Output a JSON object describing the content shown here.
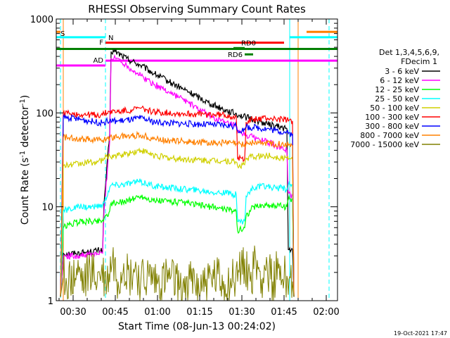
{
  "chart_data": {
    "type": "line",
    "title": "RHESSI Observing Summary Count Rates",
    "xlabel": "Start Time (08-Jun-13 00:24:02)",
    "ylabel_main": "Count Rate (s",
    "ylabel_sup1": "-1",
    "ylabel_mid": " detector",
    "ylabel_sup2": "-1",
    "ylabel_end": ")",
    "y_scale": "log",
    "ylim": [
      1,
      1000
    ],
    "xlim_minutes": [
      0,
      100
    ],
    "x_ticks": [
      {
        "label": "00:30",
        "minute": 6
      },
      {
        "label": "00:45",
        "minute": 21
      },
      {
        "label": "01:00",
        "minute": 36
      },
      {
        "label": "01:15",
        "minute": 51
      },
      {
        "label": "01:30",
        "minute": 66
      },
      {
        "label": "01:45",
        "minute": 81
      },
      {
        "label": "02:00",
        "minute": 96
      }
    ],
    "y_ticks": [
      {
        "label": "1",
        "value": 1
      },
      {
        "label": "10",
        "value": 10
      },
      {
        "label": "100",
        "value": 100
      },
      {
        "label": "1000",
        "value": 1000
      }
    ],
    "legend_header": [
      "Det 1,3,4,5,6,9,",
      "FDecim 1"
    ],
    "legend_position": "right",
    "series": [
      {
        "name": "3 - 6 keV",
        "color": "#000000",
        "points": [
          [
            1.5,
            1.1
          ],
          [
            2.5,
            3.2
          ],
          [
            7,
            3.2
          ],
          [
            12,
            3.3
          ],
          [
            16.5,
            3.5
          ],
          [
            17,
            11
          ],
          [
            19,
            60
          ],
          [
            19.5,
            450
          ],
          [
            21,
            450
          ],
          [
            25,
            380
          ],
          [
            30,
            320
          ],
          [
            35,
            260
          ],
          [
            40,
            215
          ],
          [
            45,
            180
          ],
          [
            50,
            150
          ],
          [
            55,
            125
          ],
          [
            60,
            108
          ],
          [
            65,
            95
          ],
          [
            70,
            85
          ],
          [
            75,
            76
          ],
          [
            80,
            70
          ],
          [
            82,
            68
          ],
          [
            82.5,
            3.5
          ],
          [
            84,
            3.5
          ],
          [
            84.5,
            1.1
          ]
        ]
      },
      {
        "name": "6 - 12 keV",
        "color": "#ff00ff",
        "points": [
          [
            1.5,
            1.1
          ],
          [
            2.5,
            3.0
          ],
          [
            8,
            3.0
          ],
          [
            12,
            3.1
          ],
          [
            16.5,
            3.2
          ],
          [
            17,
            9
          ],
          [
            19,
            50
          ],
          [
            19.5,
            380
          ],
          [
            22,
            380
          ],
          [
            25,
            320
          ],
          [
            30,
            250
          ],
          [
            35,
            200
          ],
          [
            40,
            168
          ],
          [
            45,
            140
          ],
          [
            50,
            112
          ],
          [
            55,
            92
          ],
          [
            60,
            78
          ],
          [
            64,
            72
          ],
          [
            64.5,
            62
          ],
          [
            70,
            55
          ],
          [
            74,
            50
          ],
          [
            78,
            45
          ],
          [
            80,
            42
          ],
          [
            82,
            40
          ],
          [
            82.5,
            14
          ],
          [
            84,
            13
          ],
          [
            84.5,
            1.1
          ]
        ]
      },
      {
        "name": "12 - 25 keV",
        "color": "#00ff00",
        "points": [
          [
            1.5,
            1.1
          ],
          [
            2.5,
            6
          ],
          [
            5,
            6.5
          ],
          [
            9,
            7
          ],
          [
            14,
            7
          ],
          [
            16.5,
            7.2
          ],
          [
            17,
            7.5
          ],
          [
            19,
            9
          ],
          [
            19.5,
            11
          ],
          [
            22,
            11
          ],
          [
            27,
            12
          ],
          [
            30,
            13
          ],
          [
            35,
            11.5
          ],
          [
            40,
            11.5
          ],
          [
            45,
            11
          ],
          [
            50,
            10.5
          ],
          [
            55,
            10
          ],
          [
            60,
            9.5
          ],
          [
            64,
            9
          ],
          [
            64.5,
            5.5
          ],
          [
            67,
            6
          ],
          [
            67.5,
            8
          ],
          [
            70,
            10
          ],
          [
            75,
            10.5
          ],
          [
            78,
            10.3
          ],
          [
            82,
            10
          ],
          [
            82.5,
            12
          ],
          [
            84,
            12
          ],
          [
            84.5,
            1.1
          ]
        ]
      },
      {
        "name": "25 - 50 keV",
        "color": "#00ffff",
        "points": [
          [
            1.5,
            1.1
          ],
          [
            2.5,
            9
          ],
          [
            5,
            9.5
          ],
          [
            9,
            10
          ],
          [
            14,
            10
          ],
          [
            16.5,
            10.5
          ],
          [
            17,
            11
          ],
          [
            19,
            16
          ],
          [
            19.5,
            17
          ],
          [
            22,
            17
          ],
          [
            27,
            18
          ],
          [
            30,
            18.5
          ],
          [
            35,
            16.5
          ],
          [
            40,
            16
          ],
          [
            45,
            15.5
          ],
          [
            50,
            15
          ],
          [
            55,
            14.5
          ],
          [
            60,
            14
          ],
          [
            64,
            13.5
          ],
          [
            64.5,
            7
          ],
          [
            67,
            7
          ],
          [
            67.5,
            13
          ],
          [
            70,
            16
          ],
          [
            75,
            16.5
          ],
          [
            78,
            16
          ],
          [
            82,
            15.5
          ],
          [
            82.5,
            17
          ],
          [
            84,
            17
          ],
          [
            84.5,
            1.1
          ]
        ]
      },
      {
        "name": "50 - 100 keV",
        "color": "#d0d000",
        "points": [
          [
            1.5,
            1.1
          ],
          [
            2.5,
            27
          ],
          [
            5,
            28
          ],
          [
            9,
            29
          ],
          [
            14,
            30
          ],
          [
            16.5,
            31
          ],
          [
            17,
            33
          ],
          [
            19,
            35
          ],
          [
            22,
            35
          ],
          [
            27,
            38
          ],
          [
            30,
            40
          ],
          [
            35,
            35
          ],
          [
            40,
            33
          ],
          [
            45,
            32
          ],
          [
            50,
            31.5
          ],
          [
            55,
            31
          ],
          [
            60,
            31
          ],
          [
            64,
            30
          ],
          [
            64.5,
            27
          ],
          [
            67,
            28
          ],
          [
            67.5,
            33
          ],
          [
            70,
            34
          ],
          [
            75,
            35
          ],
          [
            78,
            34
          ],
          [
            82,
            33
          ],
          [
            82.5,
            32
          ],
          [
            84,
            32
          ],
          [
            84.5,
            1.1
          ]
        ]
      },
      {
        "name": "100 - 300 keV",
        "color": "#ff0000",
        "points": [
          [
            1.5,
            1.1
          ],
          [
            2.5,
            100
          ],
          [
            5,
            98
          ],
          [
            9,
            96
          ],
          [
            14,
            95
          ],
          [
            16.5,
            95
          ],
          [
            17,
            98
          ],
          [
            19,
            103
          ],
          [
            22,
            103
          ],
          [
            27,
            108
          ],
          [
            30,
            112
          ],
          [
            35,
            102
          ],
          [
            40,
            100
          ],
          [
            45,
            98
          ],
          [
            50,
            97
          ],
          [
            55,
            96
          ],
          [
            60,
            95
          ],
          [
            64,
            90
          ],
          [
            64.5,
            32
          ],
          [
            67,
            33
          ],
          [
            67.5,
            80
          ],
          [
            70,
            85
          ],
          [
            75,
            88
          ],
          [
            78,
            86
          ],
          [
            82,
            84
          ],
          [
            82.5,
            82
          ],
          [
            84,
            82
          ],
          [
            84.5,
            1.1
          ]
        ]
      },
      {
        "name": "300 - 800 keV",
        "color": "#0000ff",
        "points": [
          [
            1.5,
            1.1
          ],
          [
            2.5,
            90
          ],
          [
            5,
            88
          ],
          [
            9,
            85
          ],
          [
            14,
            80
          ],
          [
            16.5,
            78
          ],
          [
            17,
            80
          ],
          [
            19,
            82
          ],
          [
            22,
            82
          ],
          [
            27,
            85
          ],
          [
            30,
            88
          ],
          [
            35,
            80
          ],
          [
            40,
            78
          ],
          [
            45,
            77
          ],
          [
            50,
            76
          ],
          [
            55,
            75
          ],
          [
            60,
            74
          ],
          [
            64,
            72
          ],
          [
            64.5,
            65
          ],
          [
            67,
            66
          ],
          [
            67.5,
            70
          ],
          [
            70,
            70
          ],
          [
            75,
            68
          ],
          [
            78,
            65
          ],
          [
            82,
            62
          ],
          [
            82.5,
            60
          ],
          [
            84,
            60
          ],
          [
            84.5,
            1.1
          ]
        ]
      },
      {
        "name": "800 - 7000 keV",
        "color": "#ff8000",
        "points": [
          [
            1.5,
            1.1
          ],
          [
            2.5,
            55
          ],
          [
            5,
            55
          ],
          [
            9,
            53
          ],
          [
            14,
            52
          ],
          [
            16.5,
            51
          ],
          [
            17,
            52
          ],
          [
            19,
            55
          ],
          [
            22,
            56
          ],
          [
            27,
            57
          ],
          [
            30,
            58
          ],
          [
            35,
            53
          ],
          [
            40,
            51
          ],
          [
            45,
            50
          ],
          [
            50,
            49
          ],
          [
            55,
            48
          ],
          [
            60,
            48
          ],
          [
            64,
            47
          ],
          [
            64.5,
            46
          ],
          [
            67,
            46
          ],
          [
            67.5,
            47
          ],
          [
            70,
            48
          ],
          [
            75,
            48
          ],
          [
            78,
            47
          ],
          [
            82,
            46
          ],
          [
            82.5,
            45
          ],
          [
            84,
            45
          ],
          [
            84.5,
            1.1
          ]
        ]
      },
      {
        "name": "7000 - 15000 keV",
        "color": "#808000",
        "points": [
          [
            1.5,
            1.1
          ],
          [
            2.5,
            1.8
          ],
          [
            5,
            1.5
          ],
          [
            8,
            2.0
          ],
          [
            10,
            1.4
          ],
          [
            12,
            2.2
          ],
          [
            14,
            1.6
          ],
          [
            16,
            2.0
          ],
          [
            18,
            1.5
          ],
          [
            20,
            2.8
          ],
          [
            22,
            1.6
          ],
          [
            24,
            2.5
          ],
          [
            26,
            1.7
          ],
          [
            28,
            2.2
          ],
          [
            30,
            1.5
          ],
          [
            33,
            1.8
          ],
          [
            36,
            1.5
          ],
          [
            40,
            1.7
          ],
          [
            44,
            1.4
          ],
          [
            48,
            1.6
          ],
          [
            52,
            1.5
          ],
          [
            56,
            1.7
          ],
          [
            60,
            1.5
          ],
          [
            63,
            1.6
          ],
          [
            65,
            2.0
          ],
          [
            67,
            2.8
          ],
          [
            69,
            1.6
          ],
          [
            71,
            2.6
          ],
          [
            73,
            1.7
          ],
          [
            75,
            2.4
          ],
          [
            77,
            1.6
          ],
          [
            79,
            2.2
          ],
          [
            81,
            1.7
          ],
          [
            83,
            1.8
          ],
          [
            84,
            1.6
          ],
          [
            84.5,
            1.1
          ]
        ]
      }
    ],
    "bars": [
      {
        "label": "S",
        "label_color": "#ff8000",
        "items": [
          {
            "y": 730,
            "x0": 0,
            "x1": 1.5,
            "color": "#ff8000"
          },
          {
            "y": 730,
            "x0": 89,
            "x1": 100,
            "color": "#ff8000"
          }
        ]
      },
      {
        "label": "N",
        "label_color": "#00ffff",
        "items": [
          {
            "y": 640,
            "x0": 0,
            "x1": 17.5,
            "color": "#00ffff"
          },
          {
            "y": 640,
            "x0": 83,
            "x1": 100,
            "color": "#00ffff"
          }
        ]
      },
      {
        "label": "F",
        "label_color": "#ff0000",
        "items": [
          {
            "y": 560,
            "x0": 17.5,
            "x1": 81,
            "color": "#ff0000"
          }
        ]
      },
      {
        "label": "",
        "label_color": "#008000",
        "items": [
          {
            "y": 480,
            "x0": 0,
            "x1": 100,
            "color": "#008000"
          }
        ]
      },
      {
        "label": "RD0",
        "label_color": "#008000",
        "items": [
          {
            "y": 490,
            "x0": 63,
            "x1": 67,
            "color": "#008000"
          }
        ]
      },
      {
        "label": "RD6",
        "label_color": "#008000",
        "items": [
          {
            "y": 420,
            "x0": 67,
            "x1": 70,
            "color": "#008000"
          }
        ]
      },
      {
        "label": "AD",
        "label_color": "#ff00ff",
        "items": [
          {
            "y": 360,
            "x0": 17.5,
            "x1": 100,
            "color": "#ff00ff"
          },
          {
            "y": 320,
            "x0": 0,
            "x1": 17.5,
            "color": "#ff00ff"
          }
        ]
      }
    ],
    "vertical_markers": [
      {
        "minute": 1.5,
        "color": "#00ffff",
        "style": "dashed"
      },
      {
        "minute": 17.5,
        "color": "#00ffff",
        "style": "dashed"
      },
      {
        "minute": 83,
        "color": "#00ffff",
        "style": "solid"
      },
      {
        "minute": 97,
        "color": "#00ffff",
        "style": "dashed"
      },
      {
        "minute": 2.5,
        "color": "#ff8000",
        "style": "solid"
      },
      {
        "minute": 86,
        "color": "#ff8000",
        "style": "solid"
      }
    ]
  },
  "timestamp": "19-Oct-2021 17:47"
}
